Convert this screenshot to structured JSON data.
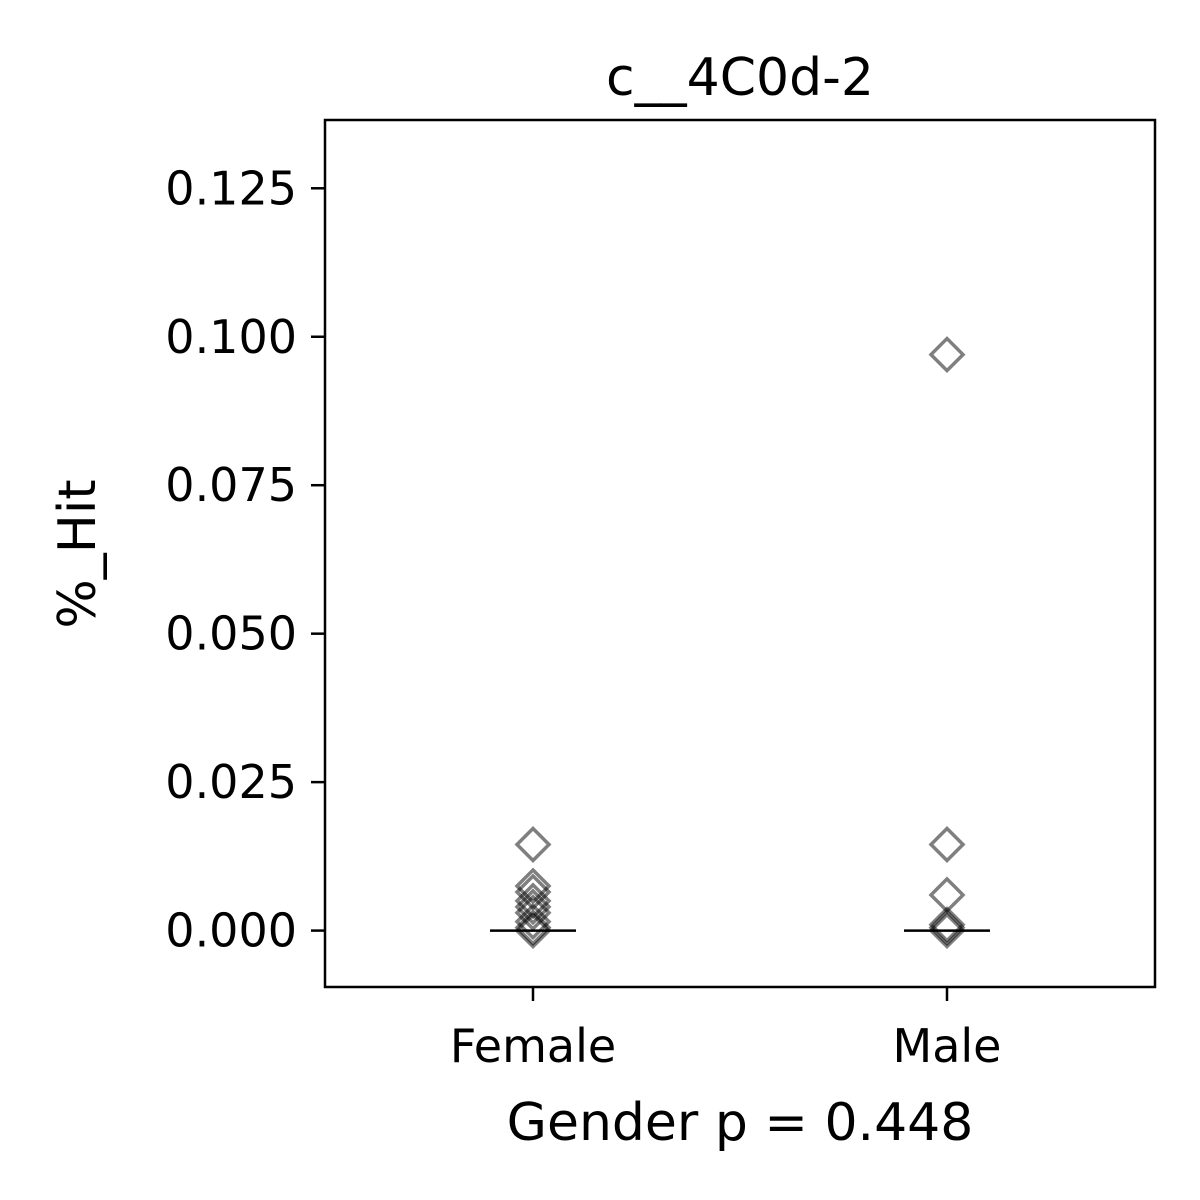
{
  "chart_data": {
    "type": "scatter",
    "title": "c__4C0d-2",
    "xlabel": "Gender p = 0.448",
    "ylabel": "%_Hit",
    "categories": [
      "Female",
      "Male"
    ],
    "ylim": [
      -0.0095,
      0.1365
    ],
    "yticks": [
      0.0,
      0.025,
      0.05,
      0.075,
      0.1,
      0.125
    ],
    "ytick_labels": [
      "0.000",
      "0.025",
      "0.050",
      "0.075",
      "0.100",
      "0.125"
    ],
    "grid": false,
    "legend": "none",
    "marker": "diamond-open",
    "marker_color": "#000000",
    "marker_alpha": 0.5,
    "series": [
      {
        "category": "Female",
        "values": [
          0.0145,
          0.0075,
          0.0065,
          0.005,
          0.004,
          0.003,
          0.0015,
          0.0005,
          0.0
        ],
        "median": 0.0
      },
      {
        "category": "Male",
        "values": [
          0.097,
          0.0145,
          0.006,
          0.001,
          0.0005,
          0.0
        ],
        "median": 0.0
      }
    ]
  }
}
